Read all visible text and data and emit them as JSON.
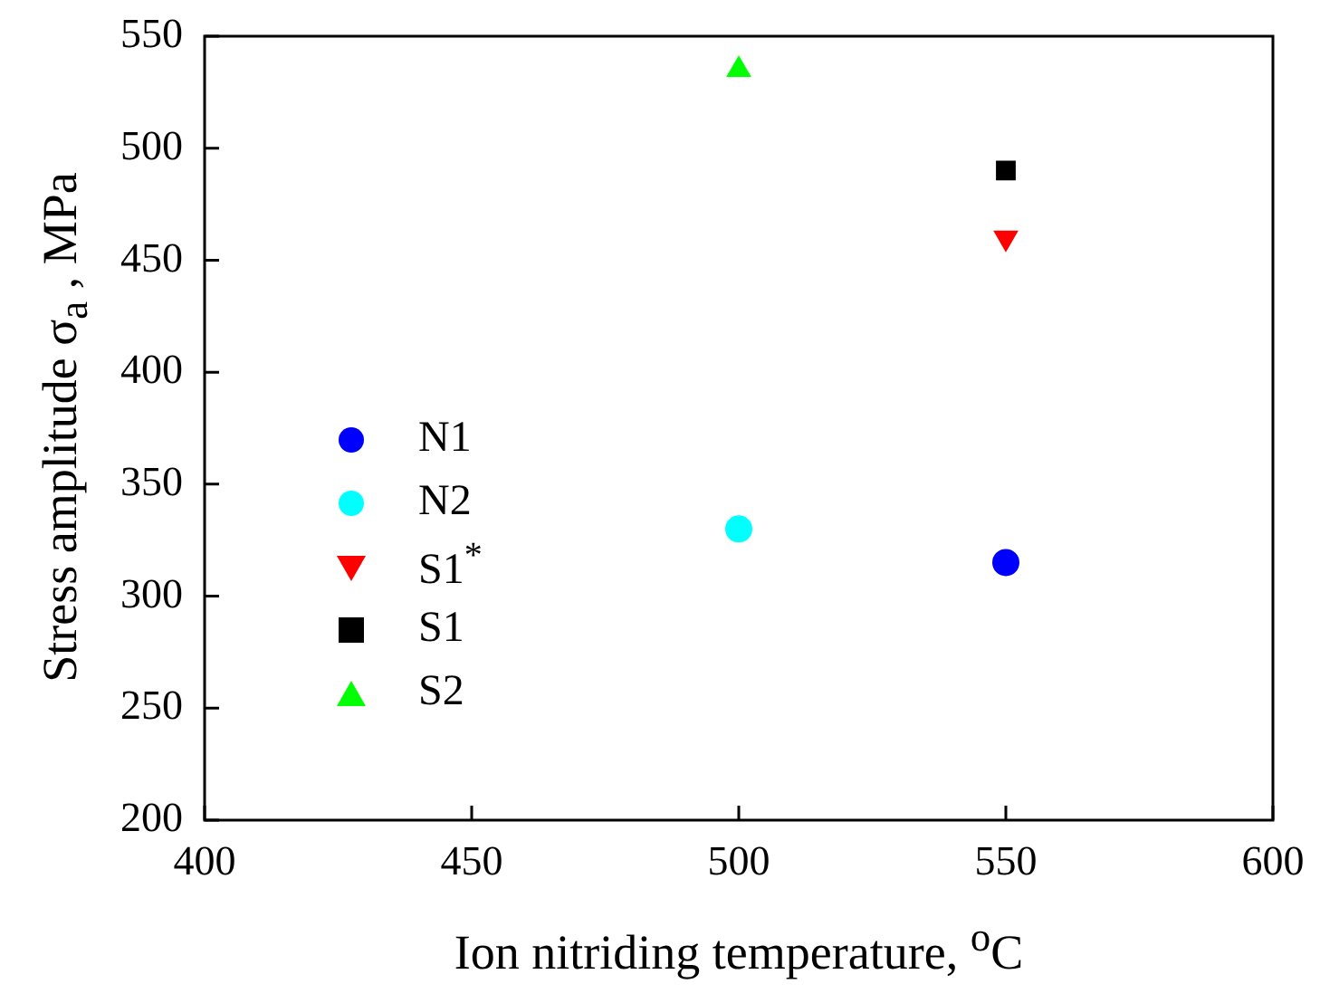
{
  "chart_data": {
    "type": "scatter",
    "xlabel": "Ion nitriding temperature, $^{o}$C",
    "ylabel": "Stress amplitude  σ$_{a}$ , MPa",
    "xlim": [
      400,
      600
    ],
    "xticks": [
      400,
      450,
      500,
      550,
      600
    ],
    "ylim": [
      200,
      550
    ],
    "yticks": [
      200,
      250,
      300,
      350,
      400,
      450,
      500,
      550
    ],
    "grid": false,
    "legend": "center left",
    "x": [
      500,
      550
    ],
    "series": [
      {
        "name": "N1",
        "color": "#0000ff",
        "marker": "circle",
        "values": [
          null,
          315
        ]
      },
      {
        "name": "N2",
        "color": "#00ffff",
        "marker": "circle",
        "values": [
          330,
          null
        ]
      },
      {
        "name": "S1$^{*}$",
        "color": "#ff0000",
        "marker": "triangle-down",
        "values": [
          null,
          460
        ]
      },
      {
        "name": "S1",
        "color": "#000000",
        "marker": "square",
        "values": [
          null,
          490
        ]
      },
      {
        "name": "S2",
        "color": "#00ff00",
        "marker": "triangle",
        "values": [
          535,
          null
        ]
      }
    ]
  }
}
